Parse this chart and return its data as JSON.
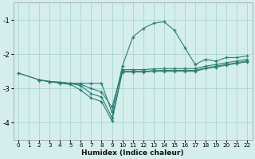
{
  "xlabel": "Humidex (Indice chaleur)",
  "background_color": "#d4eeec",
  "grid_color": "#b0d8d4",
  "line_color": "#2e7d72",
  "xlim": [
    -0.5,
    22.5
  ],
  "ylim": [
    -4.5,
    -0.5
  ],
  "yticks": [
    -4,
    -3,
    -2,
    -1
  ],
  "xticks": [
    0,
    1,
    2,
    3,
    4,
    5,
    6,
    7,
    8,
    9,
    10,
    11,
    12,
    13,
    14,
    15,
    16,
    17,
    18,
    19,
    20,
    21,
    22
  ],
  "lines": [
    {
      "x": [
        0,
        2,
        3,
        4,
        5,
        6,
        7,
        8,
        9,
        10,
        11,
        12,
        13,
        14,
        15,
        16,
        17,
        18,
        19,
        20,
        21,
        22
      ],
      "y": [
        -2.55,
        -2.75,
        -2.8,
        -2.82,
        -2.85,
        -2.85,
        -2.85,
        -2.85,
        -3.7,
        -2.35,
        -1.5,
        -1.25,
        -1.1,
        -1.05,
        -1.3,
        -1.8,
        -2.3,
        -2.15,
        -2.2,
        -2.1,
        -2.1,
        -2.05
      ]
    },
    {
      "x": [
        0,
        2,
        3,
        4,
        5,
        6,
        7,
        8,
        9,
        10,
        11,
        12,
        13,
        14,
        15,
        16,
        17,
        18,
        19,
        20,
        21,
        22
      ],
      "y": [
        -2.55,
        -2.75,
        -2.8,
        -2.82,
        -2.85,
        -2.88,
        -3.0,
        -3.1,
        -3.55,
        -2.45,
        -2.45,
        -2.45,
        -2.43,
        -2.42,
        -2.42,
        -2.42,
        -2.42,
        -2.35,
        -2.3,
        -2.25,
        -2.2,
        -2.15
      ]
    },
    {
      "x": [
        2,
        3,
        4,
        5,
        6,
        7,
        8,
        9,
        10,
        11,
        12,
        13,
        14,
        15,
        16,
        17,
        18,
        19,
        20,
        21,
        22
      ],
      "y": [
        -2.75,
        -2.8,
        -2.82,
        -2.85,
        -2.92,
        -3.15,
        -3.25,
        -3.85,
        -2.5,
        -2.5,
        -2.5,
        -2.48,
        -2.47,
        -2.47,
        -2.47,
        -2.47,
        -2.4,
        -2.35,
        -2.3,
        -2.25,
        -2.2
      ]
    },
    {
      "x": [
        2,
        3,
        4,
        5,
        6,
        7,
        8,
        9,
        10,
        11,
        12,
        13,
        14,
        15,
        16,
        17,
        18,
        19,
        20,
        21,
        22
      ],
      "y": [
        -2.75,
        -2.8,
        -2.85,
        -2.88,
        -3.05,
        -3.28,
        -3.38,
        -3.95,
        -2.52,
        -2.52,
        -2.52,
        -2.5,
        -2.5,
        -2.5,
        -2.5,
        -2.5,
        -2.42,
        -2.38,
        -2.32,
        -2.27,
        -2.22
      ]
    }
  ]
}
